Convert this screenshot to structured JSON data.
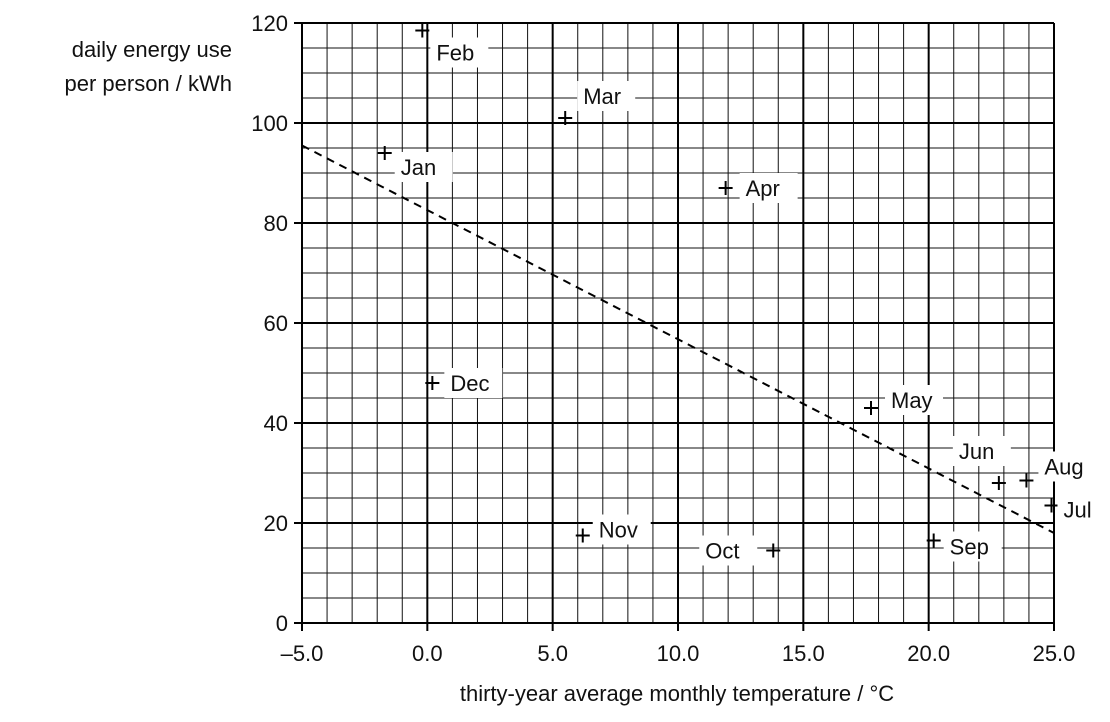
{
  "chart_data": {
    "type": "scatter",
    "ylabel_lines": [
      "daily energy use",
      "per person / kWh"
    ],
    "xlabel": "thirty-year average monthly temperature / °C",
    "xlim": [
      -5,
      25
    ],
    "ylim": [
      0,
      120
    ],
    "x_ticks": [
      "–5.0",
      "0.0",
      "5.0",
      "10.0",
      "15.0",
      "20.0",
      "25.0"
    ],
    "y_ticks": [
      "0",
      "20",
      "40",
      "60",
      "80",
      "100",
      "120"
    ],
    "grid": true,
    "grid_minor_x": 1,
    "grid_minor_y": 5,
    "grid_major_x": 5,
    "grid_major_y": 20,
    "points": [
      {
        "label": "Jan",
        "x": -1.7,
        "y": 94
      },
      {
        "label": "Feb",
        "x": -0.2,
        "y": 118.5
      },
      {
        "label": "Mar",
        "x": 5.5,
        "y": 101
      },
      {
        "label": "Apr",
        "x": 11.9,
        "y": 87
      },
      {
        "label": "May",
        "x": 17.7,
        "y": 43
      },
      {
        "label": "Jun",
        "x": 22.8,
        "y": 28
      },
      {
        "label": "Jul",
        "x": 24.9,
        "y": 23.5
      },
      {
        "label": "Aug",
        "x": 23.9,
        "y": 28.5
      },
      {
        "label": "Sep",
        "x": 20.2,
        "y": 16.5
      },
      {
        "label": "Oct",
        "x": 13.8,
        "y": 14.5
      },
      {
        "label": "Nov",
        "x": 6.2,
        "y": 17.5
      },
      {
        "label": "Dec",
        "x": 0.2,
        "y": 48
      }
    ],
    "trend_line": {
      "style": "dashed",
      "x": [
        -5,
        25
      ],
      "y": [
        95.5,
        18
      ]
    }
  }
}
